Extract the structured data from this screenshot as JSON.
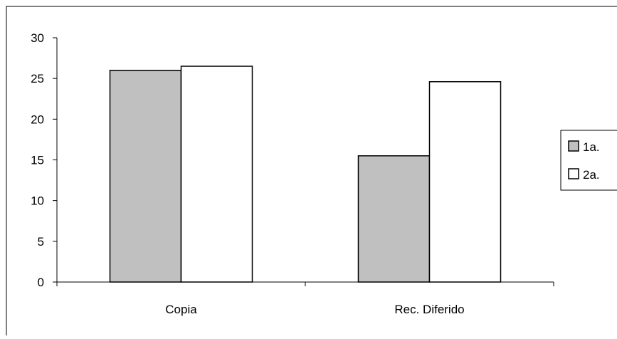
{
  "chart_data": {
    "type": "bar",
    "categories": [
      "Copia",
      "Rec. Diferido"
    ],
    "series": [
      {
        "name": "1a.",
        "values": [
          26.0,
          15.5
        ],
        "color": "#c0c0c0"
      },
      {
        "name": "2a.",
        "values": [
          26.5,
          24.6
        ],
        "color": "#ffffff"
      }
    ],
    "title": "",
    "xlabel": "",
    "ylabel": "",
    "ylim": [
      0,
      30
    ],
    "yticks": [
      "0",
      "5",
      "10",
      "15",
      "20",
      "25",
      "30"
    ],
    "grid": false,
    "legend": "right"
  }
}
